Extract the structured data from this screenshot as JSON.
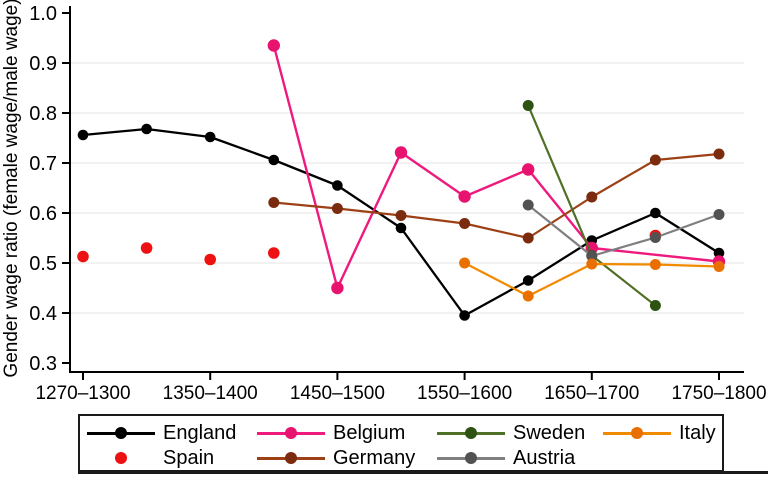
{
  "figure": {
    "kind": "line chart figure from a paper, Stata style, legend below axis"
  },
  "chart_data": {
    "type": "line",
    "title": "",
    "xlabel": "",
    "ylabel": "Gender wage ratio (female wage/male wage)",
    "ylim": [
      0.3,
      1.0
    ],
    "ytick_labels": [
      "0.3",
      "0.4",
      "0.5",
      "0.6",
      "0.7",
      "0.8",
      "0.9",
      "1.0"
    ],
    "grid_yvalues": [
      0.4,
      0.5,
      0.6,
      0.7,
      0.8,
      0.9
    ],
    "grid_color": "#e6e6e6",
    "axis_color": "#000000",
    "categories": [
      "1270–1300",
      "1300–1350",
      "1350–1400",
      "1400–1450",
      "1450–1500",
      "1500–1550",
      "1550–1600",
      "1600–1650",
      "1650–1700",
      "1700–1750",
      "1750–1800"
    ],
    "xtick_positions": [
      0,
      2,
      4,
      6,
      8,
      10
    ],
    "xtick_labels": [
      "1270–1300",
      "1350–1400",
      "1450–1500",
      "1550–1600",
      "1650–1700",
      "1750–1800"
    ],
    "legend_position": "bottom",
    "series": [
      {
        "name": "England",
        "color": "#000000",
        "marker_color": "#000000",
        "line": true,
        "line_width": 2.3,
        "marker_r": 5.3,
        "points": [
          [
            0,
            0.756
          ],
          [
            1,
            0.768
          ],
          [
            2,
            0.752
          ],
          [
            3,
            0.706
          ],
          [
            4,
            0.655
          ],
          [
            5,
            0.57
          ],
          [
            6,
            0.395
          ],
          [
            7,
            0.465
          ],
          [
            8,
            0.545
          ],
          [
            9,
            0.6
          ],
          [
            10,
            0.52
          ]
        ]
      },
      {
        "name": "Spain",
        "color": "#ee1111",
        "marker_color": "#ee1111",
        "line": false,
        "line_width": 0,
        "marker_r": 5.8,
        "points": [
          [
            0,
            0.513
          ],
          [
            1,
            0.53
          ],
          [
            2,
            0.507
          ],
          [
            3,
            0.52
          ],
          [
            9,
            0.555
          ]
        ]
      },
      {
        "name": "Belgium",
        "color": "#ee1a7e",
        "marker_color": "#e8126f",
        "line": true,
        "line_width": 2.4,
        "marker_r": 6.2,
        "points": [
          [
            3,
            0.935
          ],
          [
            4,
            0.45
          ],
          [
            5,
            0.721
          ],
          [
            6,
            0.633
          ],
          [
            7,
            0.687
          ],
          [
            8,
            0.53
          ],
          [
            10,
            0.503
          ]
        ]
      },
      {
        "name": "Germany",
        "color": "#9d4016",
        "marker_color": "#7b2b0e",
        "line": true,
        "line_width": 2.2,
        "marker_r": 5.5,
        "points": [
          [
            3,
            0.621
          ],
          [
            4,
            0.609
          ],
          [
            5,
            0.595
          ],
          [
            6,
            0.579
          ],
          [
            7,
            0.55
          ],
          [
            8,
            0.632
          ],
          [
            9,
            0.706
          ],
          [
            10,
            0.718
          ]
        ]
      },
      {
        "name": "Sweden",
        "color": "#507027",
        "marker_color": "#2d5212",
        "line": true,
        "line_width": 2.2,
        "marker_r": 5.5,
        "points": [
          [
            7,
            0.815
          ],
          [
            8,
            0.515
          ],
          [
            9,
            0.415
          ]
        ]
      },
      {
        "name": "Austria",
        "color": "#7f7f7f",
        "marker_color": "#525252",
        "line": true,
        "line_width": 2.2,
        "marker_r": 5.5,
        "points": [
          [
            7,
            0.616
          ],
          [
            8,
            0.514
          ],
          [
            9,
            0.551
          ],
          [
            10,
            0.597
          ]
        ]
      },
      {
        "name": "Italy",
        "color": "#f28a00",
        "marker_color": "#e96f00",
        "line": true,
        "line_width": 2.2,
        "marker_r": 5.5,
        "points": [
          [
            6,
            0.5
          ],
          [
            7,
            0.434
          ],
          [
            8,
            0.498
          ],
          [
            9,
            0.497
          ],
          [
            10,
            0.493
          ]
        ]
      }
    ],
    "legend_rows": [
      [
        "England",
        "Belgium",
        "Sweden",
        "Italy"
      ],
      [
        "Spain",
        "Germany",
        "Austria"
      ]
    ]
  }
}
